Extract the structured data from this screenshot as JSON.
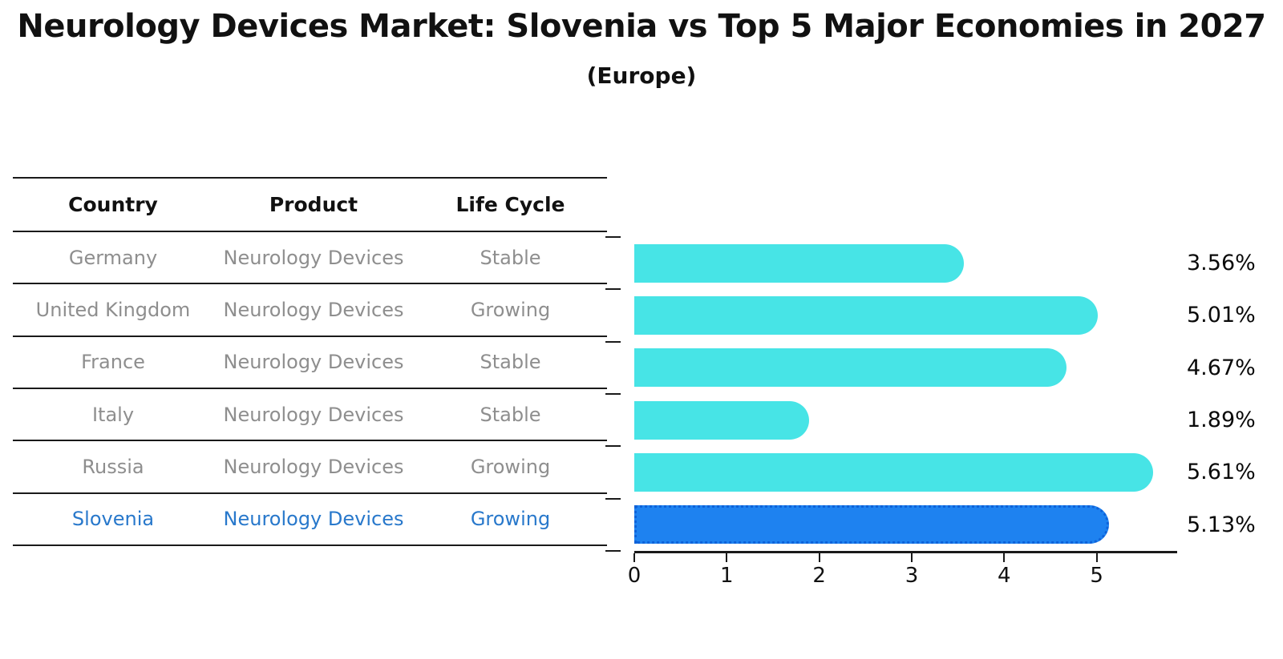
{
  "title": "Neurology Devices Market: Slovenia vs Top 5 Major Economies in 2027",
  "subtitle": "(Europe)",
  "table": {
    "headers": [
      "Country",
      "Product",
      "Life Cycle"
    ],
    "rows": [
      {
        "country": "Germany",
        "product": "Neurology Devices",
        "life_cycle": "Stable",
        "highlight": false
      },
      {
        "country": "United Kingdom",
        "product": "Neurology Devices",
        "life_cycle": "Growing",
        "highlight": false
      },
      {
        "country": "France",
        "product": "Neurology Devices",
        "life_cycle": "Stable",
        "highlight": false
      },
      {
        "country": "Italy",
        "product": "Neurology Devices",
        "life_cycle": "Stable",
        "highlight": false
      },
      {
        "country": "Russia",
        "product": "Neurology Devices",
        "life_cycle": "Growing",
        "highlight": false
      },
      {
        "country": "Slovenia",
        "product": "Neurology Devices",
        "life_cycle": "Growing",
        "highlight": true
      }
    ]
  },
  "chart_data": {
    "type": "bar",
    "orientation": "horizontal",
    "title": "Neurology Devices Market: Slovenia vs Top 5 Major Economies in 2027",
    "subtitle": "(Europe)",
    "categories": [
      "Germany",
      "United Kingdom",
      "France",
      "Italy",
      "Russia",
      "Slovenia"
    ],
    "values": [
      3.56,
      5.01,
      4.67,
      1.89,
      5.61,
      5.13
    ],
    "labels": [
      "3.56%",
      "5.01%",
      "4.67%",
      "1.89%",
      "5.61%",
      "5.13%"
    ],
    "highlight_index": 5,
    "xlim": [
      0,
      5.87
    ],
    "x_ticks": [
      "0",
      "1",
      "2",
      "3",
      "4",
      "5"
    ],
    "grid": false,
    "legend": false
  },
  "colors": {
    "bar": "#47E4E6",
    "highlight_bar": "#1E82F0",
    "highlight_border": "#0E62D9",
    "highlight_text": "#2878CB",
    "row_text": "#8E8E8E",
    "header_text": "#111111",
    "line": "#1A1A1A",
    "value_text": "#0A0A0A"
  }
}
